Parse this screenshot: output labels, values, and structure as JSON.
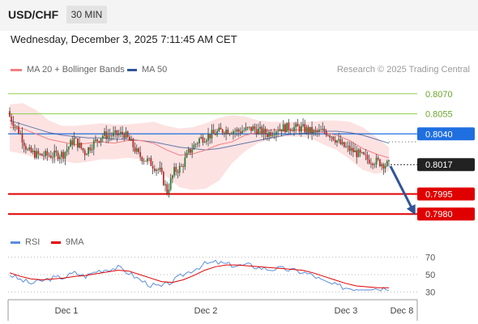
{
  "header": {
    "symbol": "USD/CHF",
    "timeframe": "30 MIN",
    "datetime": "Wednesday, December 3, 2025 7:11:45 AM CET"
  },
  "legend": {
    "ma20": "MA 20 + Bollinger Bands",
    "ma50": "MA 50",
    "rsi": "RSI",
    "ma9": "9MA",
    "credit": "Research © 2025 Trading Central"
  },
  "colors": {
    "ma20": "#f08080",
    "ma50": "#2f5597",
    "band_fill": "#fde2e2",
    "up": "#2e7d32",
    "down": "#c62828",
    "resistance": "#92d050",
    "support": "#e00000",
    "pivot": "#1f6fe0",
    "current": "#222222",
    "arrow": "#2f5597",
    "rsi": "#5b8ddb",
    "rsi_ma": "#e00000"
  },
  "chart_data": [
    {
      "type": "candlestick",
      "title": "USD/CHF",
      "timeframe": "30 MIN",
      "xticks": [
        "Dec 1",
        "Dec 2",
        "Dec 3",
        "Dec 8"
      ],
      "ylim": [
        0.7968,
        0.8082
      ],
      "levels": [
        {
          "value": 0.807,
          "label": "0.8070",
          "kind": "resistance"
        },
        {
          "value": 0.8055,
          "label": "0.8055",
          "kind": "resistance"
        },
        {
          "value": 0.804,
          "label": "0.8040",
          "kind": "pivot"
        },
        {
          "value": 0.8017,
          "label": "0.8017",
          "kind": "current"
        },
        {
          "value": 0.7995,
          "label": "0.7995",
          "kind": "support"
        },
        {
          "value": 0.798,
          "label": "0.7980",
          "kind": "support"
        }
      ],
      "close_path": [
        [
          0,
          0.8053
        ],
        [
          6,
          0.804
        ],
        [
          10,
          0.8027
        ],
        [
          16,
          0.8024
        ],
        [
          24,
          0.8024
        ],
        [
          30,
          0.8025
        ],
        [
          36,
          0.8036
        ],
        [
          42,
          0.8026
        ],
        [
          46,
          0.8032
        ],
        [
          52,
          0.8039
        ],
        [
          58,
          0.8039
        ],
        [
          64,
          0.804
        ],
        [
          68,
          0.8033
        ],
        [
          72,
          0.8024
        ],
        [
          78,
          0.8019
        ],
        [
          84,
          0.8012
        ],
        [
          88,
          0.7997
        ],
        [
          92,
          0.8012
        ],
        [
          96,
          0.8015
        ],
        [
          100,
          0.8026
        ],
        [
          106,
          0.8036
        ],
        [
          112,
          0.8039
        ],
        [
          120,
          0.8043
        ],
        [
          128,
          0.8042
        ],
        [
          136,
          0.8044
        ],
        [
          144,
          0.804
        ],
        [
          150,
          0.8044
        ],
        [
          156,
          0.8045
        ],
        [
          164,
          0.8044
        ],
        [
          170,
          0.8041
        ],
        [
          176,
          0.8042
        ],
        [
          180,
          0.8039
        ],
        [
          186,
          0.8031
        ],
        [
          192,
          0.8027
        ],
        [
          200,
          0.8021
        ],
        [
          206,
          0.8019
        ],
        [
          210,
          0.8017
        ],
        [
          212,
          0.8017
        ]
      ],
      "forecast": {
        "from": 0.8017,
        "to": 0.798
      },
      "ma20": [
        0.8045,
        0.8044,
        0.804,
        0.8036,
        0.8034,
        0.8032,
        0.8033,
        0.8034,
        0.8033,
        0.8035,
        0.8035,
        0.8033,
        0.8028,
        0.8024,
        0.8025,
        0.8028,
        0.8032,
        0.8034,
        0.8039,
        0.8041,
        0.8043,
        0.8043,
        0.8043,
        0.8043,
        0.8041,
        0.8039,
        0.8035,
        0.8029,
        0.8025,
        0.8022
      ],
      "ma50": [
        0.805,
        0.8047,
        0.8044,
        0.8041,
        0.8039,
        0.8038,
        0.8037,
        0.8037,
        0.8036,
        0.8036,
        0.8035,
        0.8034,
        0.8032,
        0.803,
        0.8029,
        0.8028,
        0.8029,
        0.8031,
        0.8033,
        0.8035,
        0.8037,
        0.8039,
        0.804,
        0.8041,
        0.8042,
        0.8042,
        0.8041,
        0.8039,
        0.8036,
        0.8033
      ],
      "bb_upper": [
        0.8062,
        0.8063,
        0.8058,
        0.805,
        0.8046,
        0.8046,
        0.8047,
        0.8048,
        0.8047,
        0.8047,
        0.8048,
        0.8049,
        0.8046,
        0.8044,
        0.8045,
        0.8048,
        0.8052,
        0.8054,
        0.8053,
        0.805,
        0.8049,
        0.8049,
        0.8049,
        0.8049,
        0.805,
        0.805,
        0.8049,
        0.8045,
        0.8038,
        0.803
      ],
      "bb_lower": [
        0.8027,
        0.8025,
        0.8022,
        0.802,
        0.802,
        0.8018,
        0.8019,
        0.8021,
        0.8021,
        0.8022,
        0.8021,
        0.8016,
        0.8008,
        0.8,
        0.7998,
        0.7999,
        0.8005,
        0.8018,
        0.8027,
        0.8033,
        0.8036,
        0.8038,
        0.8038,
        0.8037,
        0.8032,
        0.8028,
        0.8021,
        0.8013,
        0.801,
        0.8012
      ]
    },
    {
      "type": "line",
      "title": "RSI",
      "ylim": [
        25,
        75
      ],
      "yticks": [
        70,
        50,
        30
      ],
      "series": [
        {
          "name": "RSI",
          "values": [
            50,
            44,
            40,
            43,
            46,
            47,
            52,
            48,
            54,
            56,
            58,
            52,
            44,
            38,
            36,
            42,
            50,
            56,
            62,
            64,
            62,
            60,
            61,
            58,
            56,
            57,
            55,
            53,
            49,
            42,
            38,
            35,
            34,
            35,
            34,
            35
          ]
        },
        {
          "name": "9MA",
          "values": [
            52,
            48,
            45,
            44,
            45,
            46,
            48,
            49,
            51,
            53,
            55,
            54,
            50,
            46,
            42,
            41,
            44,
            49,
            55,
            59,
            61,
            61,
            60,
            59,
            58,
            57,
            56,
            55,
            52,
            48,
            44,
            40,
            37,
            36,
            35,
            35
          ]
        }
      ]
    }
  ]
}
